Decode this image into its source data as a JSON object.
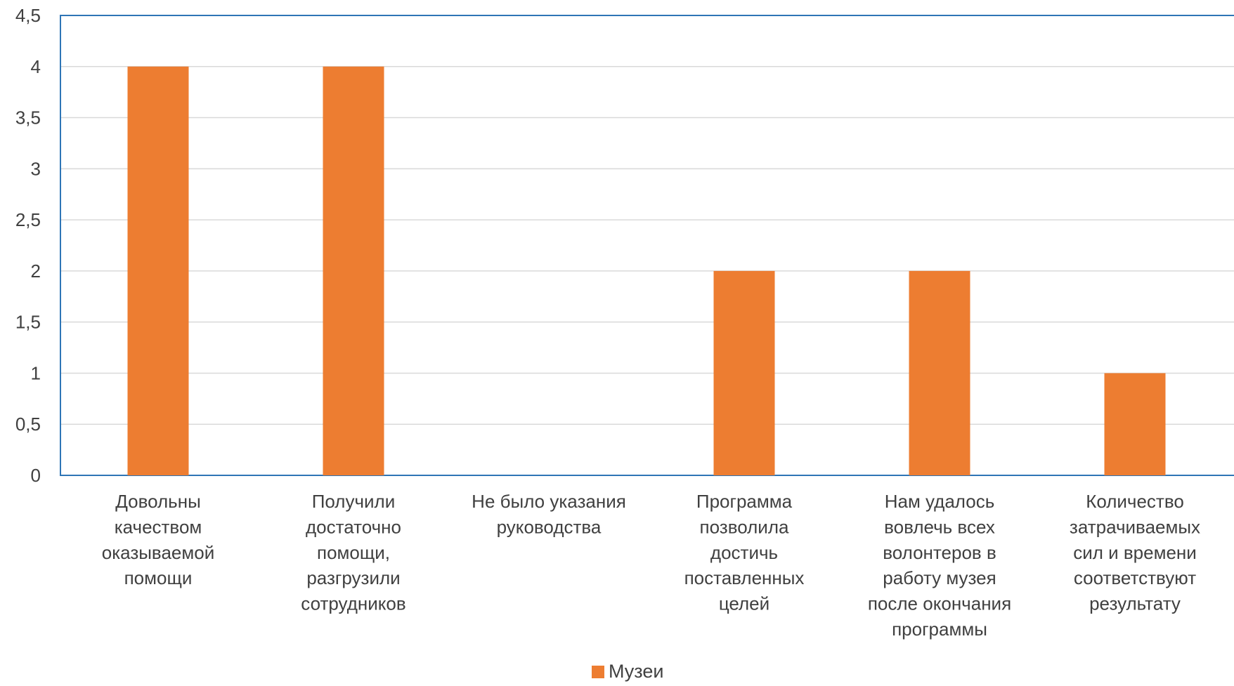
{
  "chart_data": {
    "type": "bar",
    "categories": [
      [
        "Довольны",
        "качеством",
        "оказываемой",
        "помощи"
      ],
      [
        "Получили",
        "достаточно",
        "помощи,",
        "разгрузили",
        "сотрудников"
      ],
      [
        "Не было указания",
        "руководства"
      ],
      [
        "Программа",
        "позволила",
        "достичь",
        "поставленных",
        "целей"
      ],
      [
        "Нам удалось",
        "вовлечь всех",
        "волонтеров в",
        "работу музея",
        "после окончания",
        "программы"
      ],
      [
        "Количество",
        "затрачиваемых",
        "сил и времени",
        "соответствуют",
        "результату"
      ]
    ],
    "series": [
      {
        "name": "Музеи",
        "color": "#ED7D31",
        "values": [
          4,
          4,
          0,
          2,
          2,
          1
        ]
      }
    ],
    "ylim": [
      0,
      4.5
    ],
    "yticks": [
      "0",
      "0,5",
      "1",
      "1,5",
      "2",
      "2,5",
      "3",
      "3,5",
      "4",
      "4,5"
    ],
    "grid": true,
    "legend_position": "bottom",
    "colors": {
      "gridline": "#D9D9D9",
      "plot_border": "#2E75B6",
      "text": "#404040"
    }
  }
}
